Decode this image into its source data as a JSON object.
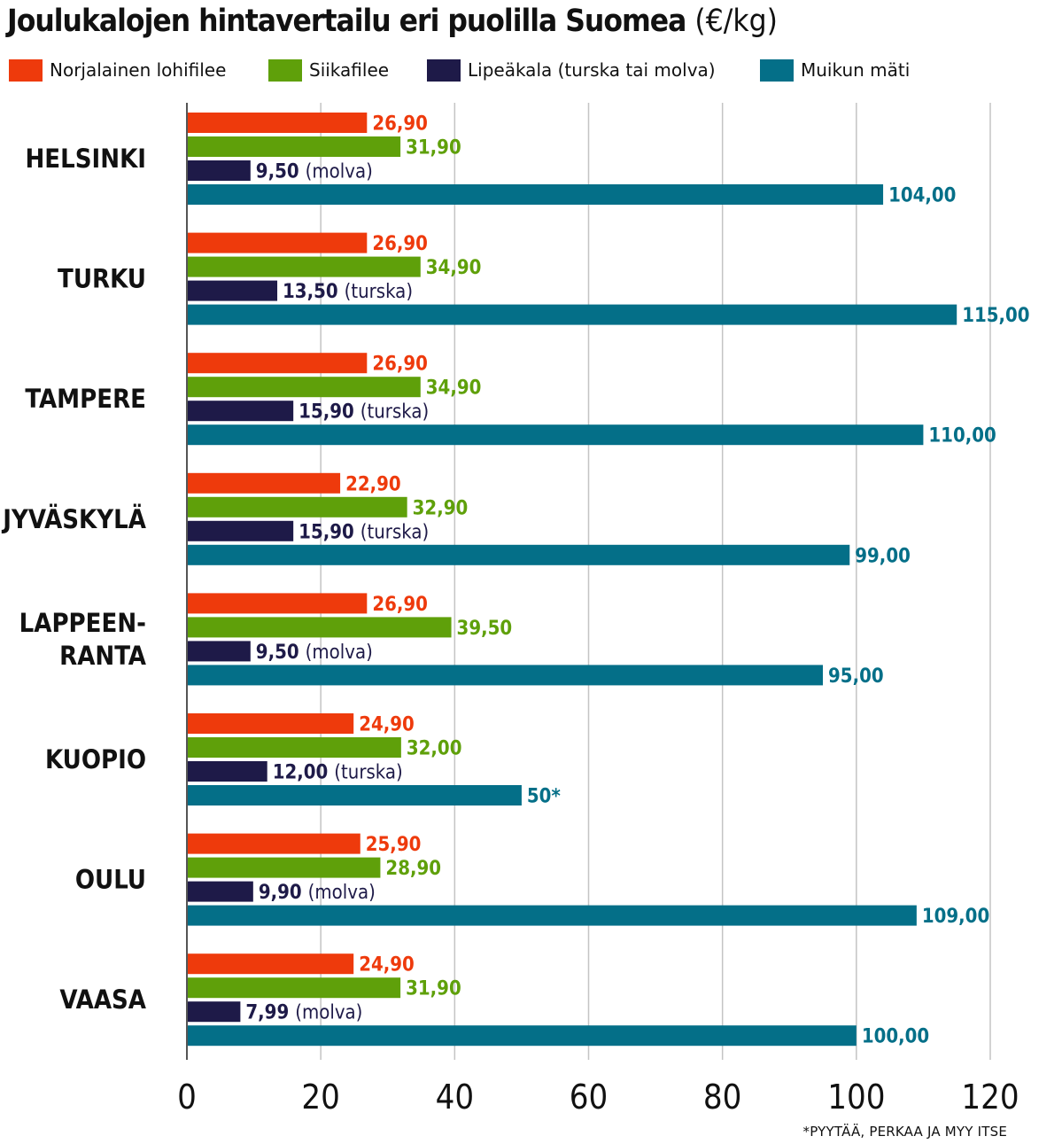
{
  "chart_data": {
    "type": "bar",
    "orientation": "horizontal",
    "title": "Joulukalojen hintavertailu eri puolilla Suomea",
    "title_unit": "(€/kg)",
    "categories": [
      {
        "lines": [
          "HELSINKI"
        ]
      },
      {
        "lines": [
          "TURKU"
        ]
      },
      {
        "lines": [
          "TAMPERE"
        ]
      },
      {
        "lines": [
          "JYVÄSKYLÄ"
        ]
      },
      {
        "lines": [
          "LAPPEEN-",
          "RANTA"
        ]
      },
      {
        "lines": [
          "KUOPIO"
        ]
      },
      {
        "lines": [
          "OULU"
        ]
      },
      {
        "lines": [
          "VAASA"
        ]
      }
    ],
    "series": [
      {
        "name": "Norjalainen lohifilee",
        "color": "#ee3a0c",
        "values": [
          26.9,
          26.9,
          26.9,
          22.9,
          26.9,
          24.9,
          25.9,
          24.9
        ],
        "labels": [
          "26,90",
          "26,90",
          "26,90",
          "22,90",
          "26,90",
          "24,90",
          "25,90",
          "24,90"
        ]
      },
      {
        "name": "Siikafilee",
        "color": "#5fa00a",
        "values": [
          31.9,
          34.9,
          34.9,
          32.9,
          39.5,
          32.0,
          28.9,
          31.9
        ],
        "labels": [
          "31,90",
          "34,90",
          "34,90",
          "32,90",
          "39,50",
          "32,00",
          "28,90",
          "31,90"
        ]
      },
      {
        "name": "Lipeäkala (turska tai molva)",
        "color": "#1e1a48",
        "values": [
          9.5,
          13.5,
          15.9,
          15.9,
          9.5,
          12.0,
          9.9,
          7.99
        ],
        "labels": [
          "9,50",
          "13,50",
          "15,90",
          "15,90",
          "9,50",
          "12,00",
          "9,90",
          "7,99"
        ],
        "notes": [
          "(molva)",
          "(turska)",
          "(turska)",
          "(turska)",
          "(molva)",
          "(turska)",
          "(molva)",
          "(molva)"
        ]
      },
      {
        "name": "Muikun mäti",
        "color": "#046f88",
        "values": [
          104,
          115,
          110,
          99,
          95,
          50,
          109,
          100
        ],
        "labels": [
          "104,00",
          "115,00",
          "110,00",
          "99,00",
          "95,00",
          "50*",
          "109,00",
          "100,00"
        ]
      }
    ],
    "xlim": [
      0,
      120
    ],
    "x_ticks": [
      0,
      20,
      40,
      60,
      80,
      100,
      120
    ],
    "grid": true,
    "legend_position": "top"
  },
  "footnote": "*PYYTÄÄ, PERKAA JA MYY ITSE"
}
